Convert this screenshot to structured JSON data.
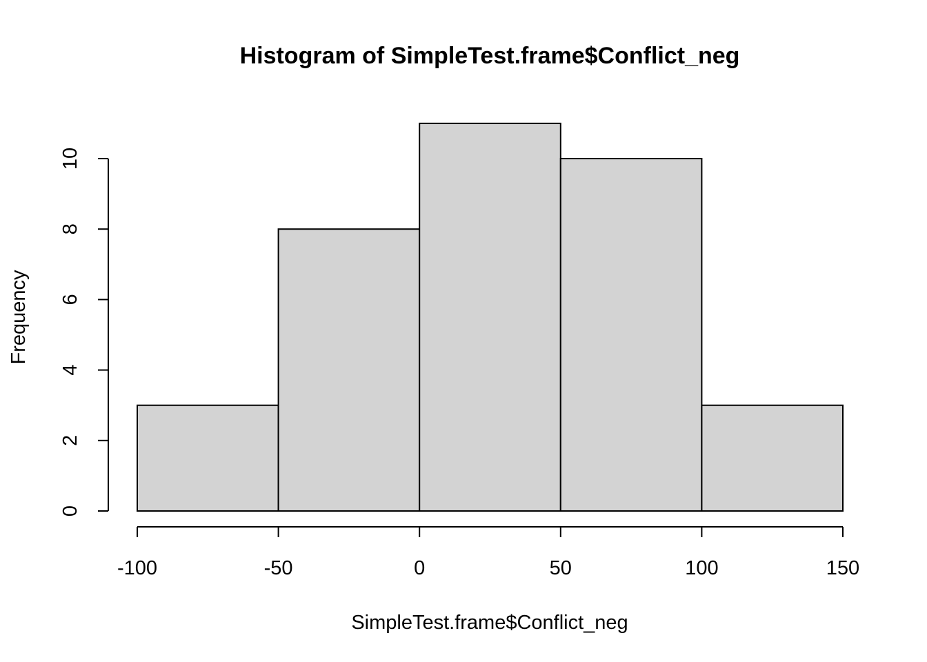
{
  "chart_data": {
    "type": "bar",
    "title": "Histogram of SimpleTest.frame$Conflict_neg",
    "xlabel": "SimpleTest.frame$Conflict_neg",
    "ylabel": "Frequency",
    "bins": [
      {
        "start": -100,
        "end": -50,
        "count": 3
      },
      {
        "start": -50,
        "end": 0,
        "count": 8
      },
      {
        "start": 0,
        "end": 50,
        "count": 11
      },
      {
        "start": 50,
        "end": 100,
        "count": 10
      },
      {
        "start": 100,
        "end": 150,
        "count": 3
      }
    ],
    "xlim": [
      -100,
      150
    ],
    "ylim": [
      0,
      11
    ],
    "x_ticks": [
      -100,
      -50,
      0,
      50,
      100,
      150
    ],
    "x_tick_labels": [
      "-100",
      "-50",
      "0",
      "50",
      "100",
      "150"
    ],
    "y_ticks": [
      0,
      2,
      4,
      6,
      8,
      10
    ],
    "y_tick_labels": [
      "0",
      "2",
      "4",
      "6",
      "8",
      "10"
    ],
    "bar_fill": "#d3d3d3",
    "grid": false
  }
}
